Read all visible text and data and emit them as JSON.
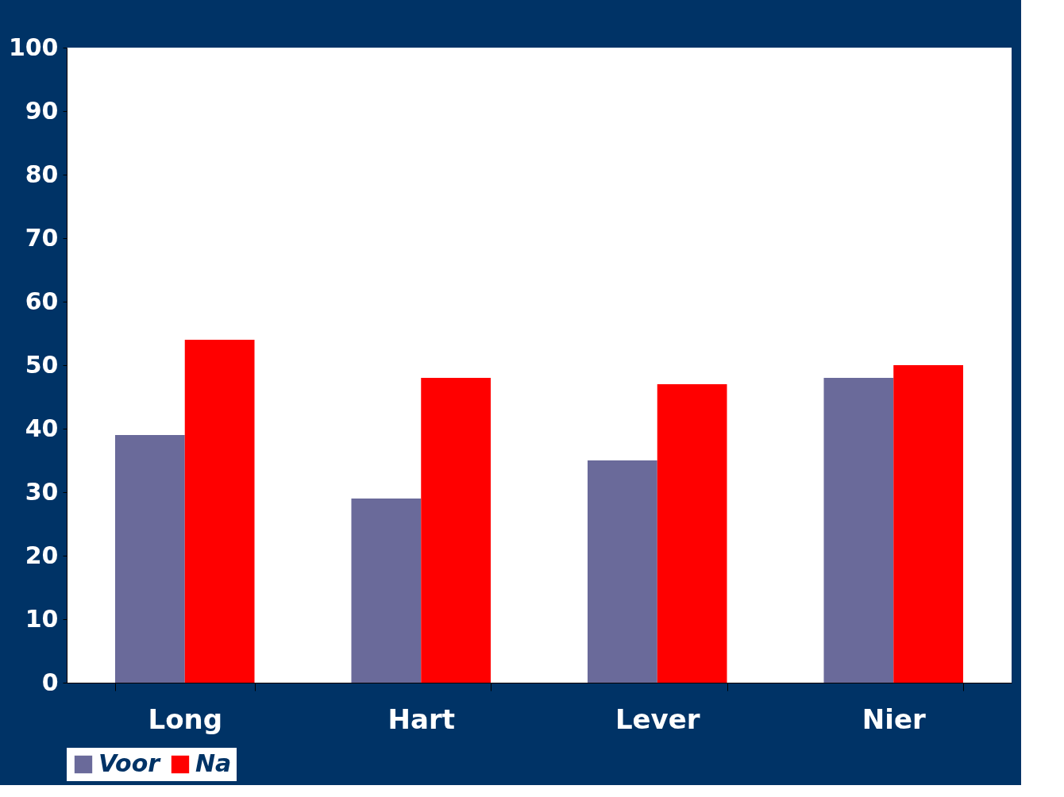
{
  "chart_data": {
    "type": "bar",
    "categories": [
      "Long",
      "Hart",
      "Lever",
      "Nier"
    ],
    "series": [
      {
        "name": "Voor",
        "color": "#6a6a9a",
        "values": [
          39,
          29,
          35,
          48
        ]
      },
      {
        "name": "Na",
        "color": "#ff0000",
        "values": [
          54,
          48,
          47,
          50
        ]
      }
    ],
    "ylim": [
      0,
      100
    ],
    "yticks": [
      0,
      10,
      20,
      30,
      40,
      50,
      60,
      70,
      80,
      90,
      100
    ],
    "grid": false,
    "legend": "bottom"
  }
}
